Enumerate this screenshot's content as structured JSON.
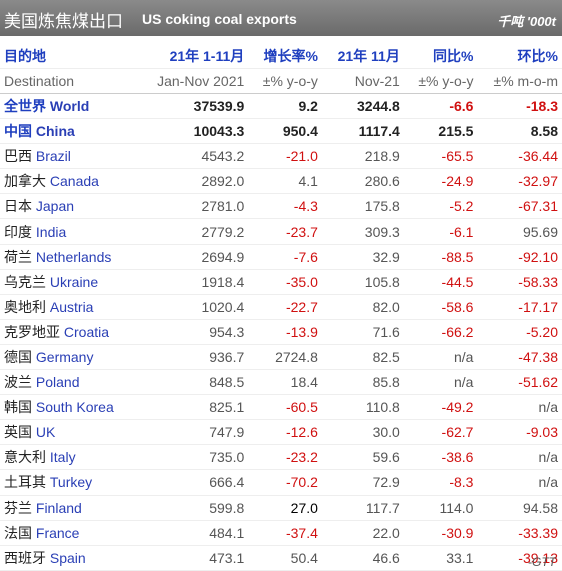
{
  "header": {
    "title_cn": "美国炼焦煤出口",
    "title_en": "US coking coal exports",
    "unit": "千吨 '000t"
  },
  "table": {
    "columns": [
      "目的地",
      "21年 1-11月",
      "增长率%",
      "21年 11月",
      "同比%",
      "环比%"
    ],
    "subcolumns": [
      "Destination",
      "Jan-Nov 2021",
      "±% y-o-y",
      "Nov-21",
      "±% y-o-y",
      "±% m-o-m"
    ],
    "rows": [
      [
        "全世界",
        "World",
        "37539.9",
        "9.2",
        "3244.8",
        "-6.6",
        "-18.3"
      ],
      [
        "中国",
        "China",
        "10043.3",
        "950.4",
        "1117.4",
        "215.5",
        "8.58"
      ],
      [
        "巴西",
        "Brazil",
        "4543.2",
        "-21.0",
        "218.9",
        "-65.5",
        "-36.44"
      ],
      [
        "加拿大",
        "Canada",
        "2892.0",
        "4.1",
        "280.6",
        "-24.9",
        "-32.97"
      ],
      [
        "日本",
        "Japan",
        "2781.0",
        "-4.3",
        "175.8",
        "-5.2",
        "-67.31"
      ],
      [
        "印度",
        "India",
        "2779.2",
        "-23.7",
        "309.3",
        "-6.1",
        "95.69"
      ],
      [
        "荷兰",
        "Netherlands",
        "2694.9",
        "-7.6",
        "32.9",
        "-88.5",
        "-92.10"
      ],
      [
        "乌克兰",
        "Ukraine",
        "1918.4",
        "-35.0",
        "105.8",
        "-44.5",
        "-58.33"
      ],
      [
        "奥地利",
        "Austria",
        "1020.4",
        "-22.7",
        "82.0",
        "-58.6",
        "-17.17"
      ],
      [
        "克罗地亚",
        "Croatia",
        "954.3",
        "-13.9",
        "71.6",
        "-66.2",
        "-5.20"
      ],
      [
        "德国",
        "Germany",
        "936.7",
        "2724.8",
        "82.5",
        "n/a",
        "-47.38"
      ],
      [
        "波兰",
        "Poland",
        "848.5",
        "18.4",
        "85.8",
        "n/a",
        "-51.62"
      ],
      [
        "韩国",
        "South Korea",
        "825.1",
        "-60.5",
        "110.8",
        "-49.2",
        "n/a"
      ],
      [
        "英国",
        "UK",
        "747.9",
        "-12.6",
        "30.0",
        "-62.7",
        "-9.03"
      ],
      [
        "意大利",
        "Italy",
        "735.0",
        "-23.2",
        "59.6",
        "-38.6",
        "n/a"
      ],
      [
        "土耳其",
        "Turkey",
        "666.4",
        "-70.2",
        "72.9",
        "-8.3",
        "n/a"
      ],
      [
        "芬兰",
        "Finland",
        "599.8",
        "27.0",
        "117.7",
        "114.0",
        "94.58"
      ],
      [
        "法国",
        "France",
        "484.1",
        "-37.4",
        "22.0",
        "-30.9",
        "-33.39"
      ],
      [
        "西班牙",
        "Spain",
        "473.1",
        "50.4",
        "46.6",
        "33.1",
        "-39.13"
      ]
    ]
  },
  "footer": {
    "source": "-GTT"
  }
}
